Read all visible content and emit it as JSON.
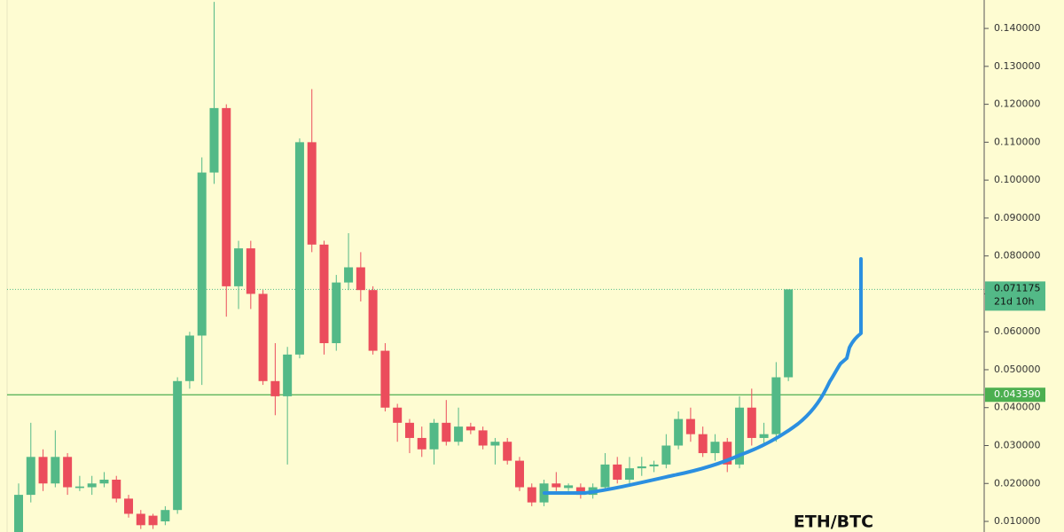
{
  "chart_data": {
    "type": "candlestick",
    "title": "ETH/BTC",
    "colors": {
      "up": "#53b987",
      "down": "#eb4d5c"
    },
    "open": [
      0.007,
      0.017,
      0.027,
      0.02,
      0.027,
      0.0188,
      0.019,
      0.02,
      0.021,
      0.016,
      0.012,
      0.0115,
      0.01,
      0.013,
      0.047,
      0.059,
      0.102,
      0.119,
      0.072,
      0.082,
      0.07,
      0.047,
      0.043,
      0.054,
      0.11,
      0.083,
      0.057,
      0.073,
      0.077,
      0.071,
      0.055,
      0.04,
      0.036,
      0.032,
      0.029,
      0.036,
      0.031,
      0.035,
      0.034,
      0.03,
      0.031,
      0.026,
      0.019,
      0.015,
      0.02,
      0.0188,
      0.019,
      0.017,
      0.019,
      0.025,
      0.021,
      0.024,
      0.0245,
      0.025,
      0.03,
      0.037,
      0.033,
      0.028,
      0.031,
      0.025,
      0.04,
      0.032,
      0.033,
      0.048
    ],
    "high": [
      0.02,
      0.036,
      0.029,
      0.034,
      0.028,
      0.022,
      0.022,
      0.023,
      0.022,
      0.017,
      0.013,
      0.012,
      0.014,
      0.048,
      0.06,
      0.106,
      0.147,
      0.12,
      0.084,
      0.084,
      0.071,
      0.057,
      0.056,
      0.111,
      0.124,
      0.084,
      0.075,
      0.086,
      0.081,
      0.072,
      0.057,
      0.041,
      0.037,
      0.035,
      0.037,
      0.042,
      0.04,
      0.036,
      0.035,
      0.032,
      0.032,
      0.027,
      0.02,
      0.021,
      0.023,
      0.02,
      0.02,
      0.02,
      0.028,
      0.027,
      0.027,
      0.027,
      0.026,
      0.033,
      0.039,
      0.04,
      0.035,
      0.033,
      0.032,
      0.043,
      0.045,
      0.036,
      0.052,
      0.071175
    ],
    "low": [
      0.006,
      0.015,
      0.018,
      0.019,
      0.017,
      0.018,
      0.017,
      0.019,
      0.015,
      0.011,
      0.008,
      0.008,
      0.009,
      0.012,
      0.045,
      0.046,
      0.099,
      0.064,
      0.066,
      0.066,
      0.046,
      0.038,
      0.025,
      0.053,
      0.081,
      0.054,
      0.055,
      0.071,
      0.068,
      0.054,
      0.039,
      0.031,
      0.028,
      0.027,
      0.025,
      0.03,
      0.03,
      0.033,
      0.029,
      0.025,
      0.025,
      0.018,
      0.014,
      0.014,
      0.018,
      0.018,
      0.016,
      0.016,
      0.018,
      0.02,
      0.02,
      0.022,
      0.023,
      0.024,
      0.029,
      0.031,
      0.027,
      0.026,
      0.023,
      0.024,
      0.03,
      0.03,
      0.031,
      0.047
    ],
    "close": [
      0.017,
      0.027,
      0.02,
      0.027,
      0.019,
      0.0192,
      0.02,
      0.021,
      0.016,
      0.012,
      0.009,
      0.009,
      0.013,
      0.047,
      0.059,
      0.102,
      0.119,
      0.072,
      0.082,
      0.07,
      0.047,
      0.043,
      0.054,
      0.11,
      0.083,
      0.057,
      0.073,
      0.077,
      0.071,
      0.055,
      0.04,
      0.036,
      0.032,
      0.029,
      0.036,
      0.031,
      0.035,
      0.034,
      0.03,
      0.031,
      0.026,
      0.019,
      0.015,
      0.02,
      0.019,
      0.0195,
      0.017,
      0.019,
      0.025,
      0.021,
      0.024,
      0.0245,
      0.025,
      0.03,
      0.037,
      0.033,
      0.028,
      0.031,
      0.025,
      0.04,
      0.032,
      0.033,
      0.048,
      0.071175
    ],
    "ylim": [
      0.0072,
      0.1475
    ],
    "yticks": [
      {
        "value": 0.01,
        "label": "0.010000"
      },
      {
        "value": 0.02,
        "label": "0.020000"
      },
      {
        "value": 0.03,
        "label": "0.030000"
      },
      {
        "value": 0.04,
        "label": "0.040000"
      },
      {
        "value": 0.05,
        "label": "0.050000"
      },
      {
        "value": 0.06,
        "label": "0.060000"
      },
      {
        "value": 0.07,
        "label": "0.070000"
      },
      {
        "value": 0.08,
        "label": "0.080000"
      },
      {
        "value": 0.09,
        "label": "0.090000"
      },
      {
        "value": 0.1,
        "label": "0.100000"
      },
      {
        "value": 0.11,
        "label": "0.110000"
      },
      {
        "value": 0.12,
        "label": "0.120000"
      },
      {
        "value": 0.13,
        "label": "0.130000"
      },
      {
        "value": 0.14,
        "label": "0.140000"
      }
    ],
    "last_price": {
      "value": 0.071175,
      "countdown": "21d 10h",
      "color": "#53b987"
    },
    "level_line": {
      "value": 0.04339,
      "label": "0.043390",
      "color": "#4caf50"
    }
  }
}
